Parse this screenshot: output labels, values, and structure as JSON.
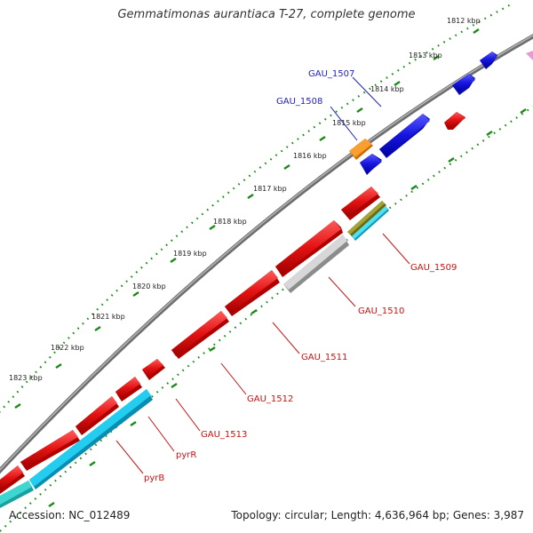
{
  "title": "Gemmatimonas aurantiaca T-27, complete genome",
  "footer": {
    "accession": "Accession: NC_012489",
    "summary": "Topology: circular; Length: 4,636,964 bp; Genes: 3,987"
  },
  "scale_labels": [
    "1812 kbp",
    "1813 kbp",
    "1814 kbp",
    "1815 kbp",
    "1816 kbp",
    "1817 kbp",
    "1818 kbp",
    "1819 kbp",
    "1820 kbp",
    "1821 kbp",
    "1822 kbp",
    "1823 kbp"
  ],
  "labels": {
    "gau1507": "GAU_1507",
    "gau1508": "GAU_1508",
    "gau1509": "GAU_1509",
    "gau1510": "GAU_1510",
    "gau1511": "GAU_1511",
    "gau1512": "GAU_1512",
    "gau1513": "GAU_1513",
    "pyrR": "pyrR",
    "pyrB": "pyrB"
  },
  "colors": {
    "forward_gene": "#1515e0",
    "reverse_gene": "#e31212",
    "orange_feature": "#f08a0a",
    "cyan_feature": "#19c6e6",
    "gray_feature": "#c0c0c0",
    "olive_feature": "#7a7a1a",
    "backbone": "#8a8a8a",
    "tick": "#1a8a1a"
  }
}
